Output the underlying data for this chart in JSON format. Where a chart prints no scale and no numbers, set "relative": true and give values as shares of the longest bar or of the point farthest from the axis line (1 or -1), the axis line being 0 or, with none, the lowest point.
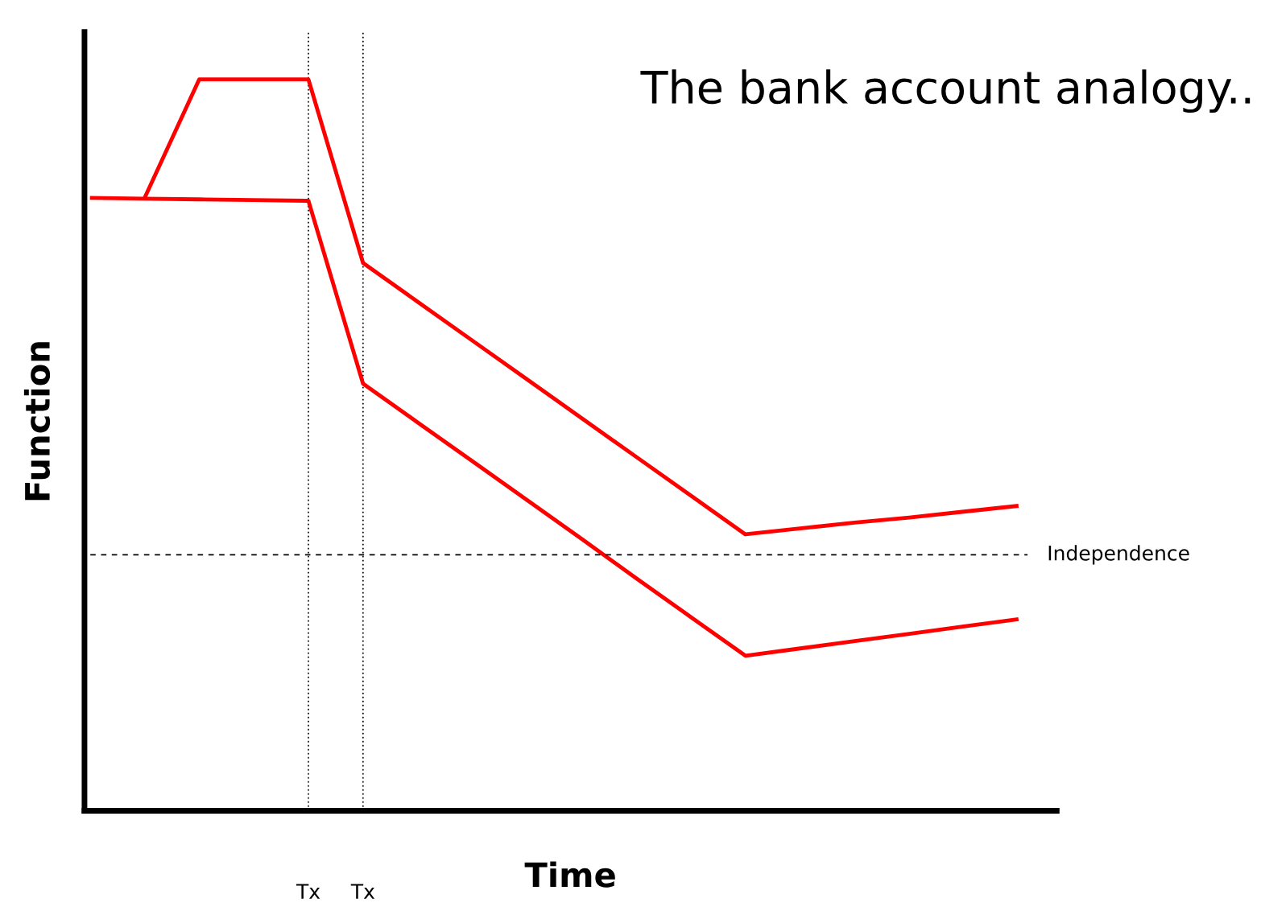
{
  "chart_data": {
    "type": "line",
    "title": "The bank account analogy..",
    "xlabel": "Time",
    "ylabel": "Function",
    "relative": true,
    "grid": "x",
    "marker": "none",
    "line_style": "solid",
    "categories": [
      null,
      null,
      null,
      null,
      "Tx",
      "Tx",
      null,
      null,
      null,
      null,
      null,
      null,
      null,
      null,
      null,
      null,
      null,
      null
    ],
    "series": [
      {
        "color": "#ff0000",
        "values": [
          0.838,
          0.837,
          0.836,
          0.835,
          0.834,
          0.584,
          0.531,
          0.478,
          0.425,
          0.372,
          0.318,
          0.265,
          0.212,
          0.222,
          0.232,
          0.242,
          0.252,
          0.262
        ]
      },
      {
        "color": "#ff0000",
        "values": [
          null,
          0.838,
          1.0,
          1.0,
          1.0,
          0.749,
          0.696,
          0.643,
          0.59,
          0.537,
          0.484,
          0.431,
          0.378,
          0.386,
          0.394,
          0.401,
          0.409,
          0.417
        ]
      }
    ],
    "ref_lines": [
      {
        "axis": "y",
        "value": 0.35,
        "label": "Independence",
        "color": "#000000",
        "line_style": "dashed"
      }
    ]
  }
}
